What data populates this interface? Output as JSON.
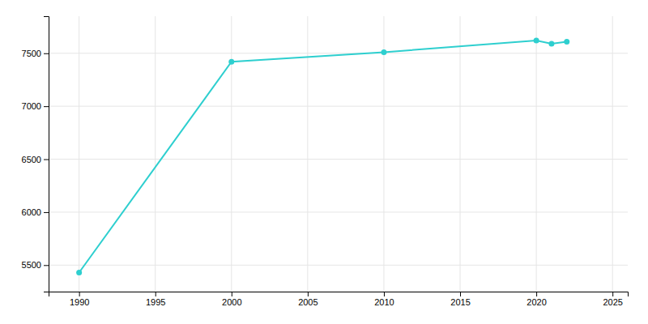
{
  "chart_data": {
    "type": "line",
    "x": [
      1990,
      2000,
      2010,
      2020,
      2021,
      2022
    ],
    "values": [
      5430,
      7420,
      7510,
      7620,
      7590,
      7610
    ],
    "color": "#2ecfcf",
    "marker": "circle",
    "xlim": [
      1988,
      2026
    ],
    "ylim": [
      5250,
      7850
    ],
    "xticks": [
      1990,
      1995,
      2000,
      2005,
      2010,
      2015,
      2020,
      2025
    ],
    "yticks": [
      5500,
      6000,
      6500,
      7000,
      7500
    ],
    "grid": true
  }
}
